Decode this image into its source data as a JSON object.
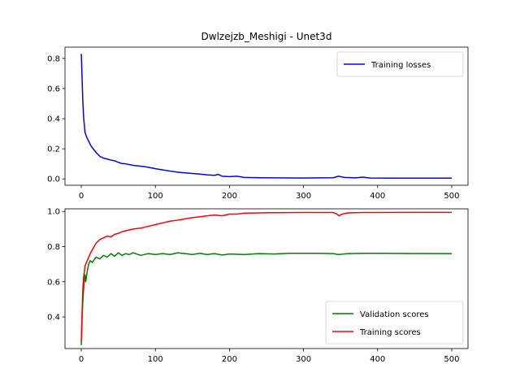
{
  "chart_data": {
    "title": "Dwlzejzb_Meshigi - Unet3d",
    "subplots": [
      {
        "type": "line",
        "xlim": [
          -22,
          522
        ],
        "ylim": [
          -0.042,
          0.875
        ],
        "xticks": [
          "0",
          "100",
          "200",
          "300",
          "400",
          "500"
        ],
        "yticks": [
          "0.0",
          "0.2",
          "0.4",
          "0.6",
          "0.8"
        ],
        "xtick_values": [
          0,
          100,
          200,
          300,
          400,
          500
        ],
        "ytick_values": [
          0.0,
          0.2,
          0.4,
          0.6,
          0.8
        ],
        "legend_position": "upper right",
        "series": [
          {
            "name": "Training losses",
            "color": "#0000ff",
            "points": [
              [
                0,
                0.83
              ],
              [
                1,
                0.68
              ],
              [
                2,
                0.52
              ],
              [
                3,
                0.42
              ],
              [
                4,
                0.36
              ],
              [
                5,
                0.31
              ],
              [
                7,
                0.28
              ],
              [
                10,
                0.25
              ],
              [
                13,
                0.22
              ],
              [
                16,
                0.2
              ],
              [
                20,
                0.175
              ],
              [
                25,
                0.15
              ],
              [
                30,
                0.138
              ],
              [
                35,
                0.132
              ],
              [
                40,
                0.125
              ],
              [
                45,
                0.12
              ],
              [
                50,
                0.11
              ],
              [
                55,
                0.102
              ],
              [
                60,
                0.1
              ],
              [
                70,
                0.09
              ],
              [
                80,
                0.085
              ],
              [
                90,
                0.078
              ],
              [
                100,
                0.068
              ],
              [
                110,
                0.06
              ],
              [
                120,
                0.052
              ],
              [
                130,
                0.045
              ],
              [
                140,
                0.04
              ],
              [
                150,
                0.036
              ],
              [
                160,
                0.032
              ],
              [
                170,
                0.027
              ],
              [
                180,
                0.024
              ],
              [
                185,
                0.03
              ],
              [
                190,
                0.018
              ],
              [
                200,
                0.015
              ],
              [
                210,
                0.018
              ],
              [
                220,
                0.01
              ],
              [
                240,
                0.008
              ],
              [
                260,
                0.007
              ],
              [
                300,
                0.006
              ],
              [
                340,
                0.008
              ],
              [
                347,
                0.018
              ],
              [
                355,
                0.01
              ],
              [
                370,
                0.007
              ],
              [
                380,
                0.012
              ],
              [
                390,
                0.006
              ],
              [
                420,
                0.005
              ],
              [
                460,
                0.005
              ],
              [
                500,
                0.005
              ]
            ]
          }
        ]
      },
      {
        "type": "line",
        "xlim": [
          -22,
          522
        ],
        "ylim": [
          0.22,
          1.015
        ],
        "xticks": [
          "0",
          "100",
          "200",
          "300",
          "400",
          "500"
        ],
        "yticks": [
          "0.4",
          "0.6",
          "0.8",
          "1.0"
        ],
        "xtick_values": [
          0,
          100,
          200,
          300,
          400,
          500
        ],
        "ytick_values": [
          0.4,
          0.6,
          0.8,
          1.0
        ],
        "legend_position": "lower right",
        "series": [
          {
            "name": "Validation scores",
            "color": "#008000",
            "points": [
              [
                0,
                0.24
              ],
              [
                1,
                0.38
              ],
              [
                2,
                0.48
              ],
              [
                3,
                0.55
              ],
              [
                4,
                0.6
              ],
              [
                5,
                0.64
              ],
              [
                6,
                0.6
              ],
              [
                8,
                0.66
              ],
              [
                10,
                0.7
              ],
              [
                12,
                0.72
              ],
              [
                15,
                0.71
              ],
              [
                18,
                0.73
              ],
              [
                20,
                0.74
              ],
              [
                25,
                0.73
              ],
              [
                30,
                0.75
              ],
              [
                35,
                0.74
              ],
              [
                40,
                0.76
              ],
              [
                45,
                0.745
              ],
              [
                50,
                0.765
              ],
              [
                55,
                0.75
              ],
              [
                60,
                0.76
              ],
              [
                65,
                0.755
              ],
              [
                70,
                0.765
              ],
              [
                80,
                0.75
              ],
              [
                90,
                0.76
              ],
              [
                100,
                0.755
              ],
              [
                110,
                0.76
              ],
              [
                120,
                0.755
              ],
              [
                130,
                0.765
              ],
              [
                140,
                0.76
              ],
              [
                150,
                0.755
              ],
              [
                160,
                0.762
              ],
              [
                170,
                0.755
              ],
              [
                180,
                0.76
              ],
              [
                190,
                0.752
              ],
              [
                200,
                0.758
              ],
              [
                220,
                0.755
              ],
              [
                240,
                0.76
              ],
              [
                260,
                0.758
              ],
              [
                280,
                0.762
              ],
              [
                300,
                0.762
              ],
              [
                320,
                0.762
              ],
              [
                340,
                0.76
              ],
              [
                347,
                0.755
              ],
              [
                360,
                0.76
              ],
              [
                380,
                0.762
              ],
              [
                400,
                0.762
              ],
              [
                450,
                0.761
              ],
              [
                500,
                0.76
              ]
            ]
          },
          {
            "name": "Training scores",
            "color": "#ff0000",
            "points": [
              [
                0,
                0.26
              ],
              [
                1,
                0.42
              ],
              [
                2,
                0.55
              ],
              [
                3,
                0.62
              ],
              [
                5,
                0.69
              ],
              [
                8,
                0.72
              ],
              [
                12,
                0.76
              ],
              [
                16,
                0.79
              ],
              [
                20,
                0.82
              ],
              [
                25,
                0.84
              ],
              [
                30,
                0.85
              ],
              [
                35,
                0.86
              ],
              [
                40,
                0.855
              ],
              [
                45,
                0.87
              ],
              [
                50,
                0.875
              ],
              [
                55,
                0.885
              ],
              [
                60,
                0.89
              ],
              [
                70,
                0.9
              ],
              [
                80,
                0.905
              ],
              [
                90,
                0.915
              ],
              [
                100,
                0.925
              ],
              [
                110,
                0.935
              ],
              [
                120,
                0.945
              ],
              [
                130,
                0.95
              ],
              [
                140,
                0.958
              ],
              [
                150,
                0.965
              ],
              [
                160,
                0.97
              ],
              [
                170,
                0.975
              ],
              [
                180,
                0.98
              ],
              [
                190,
                0.975
              ],
              [
                200,
                0.985
              ],
              [
                210,
                0.985
              ],
              [
                220,
                0.99
              ],
              [
                240,
                0.992
              ],
              [
                260,
                0.993
              ],
              [
                300,
                0.994
              ],
              [
                340,
                0.994
              ],
              [
                345,
                0.985
              ],
              [
                348,
                0.975
              ],
              [
                352,
                0.985
              ],
              [
                360,
                0.992
              ],
              [
                380,
                0.994
              ],
              [
                400,
                0.994
              ],
              [
                450,
                0.995
              ],
              [
                500,
                0.995
              ]
            ]
          }
        ]
      }
    ]
  }
}
